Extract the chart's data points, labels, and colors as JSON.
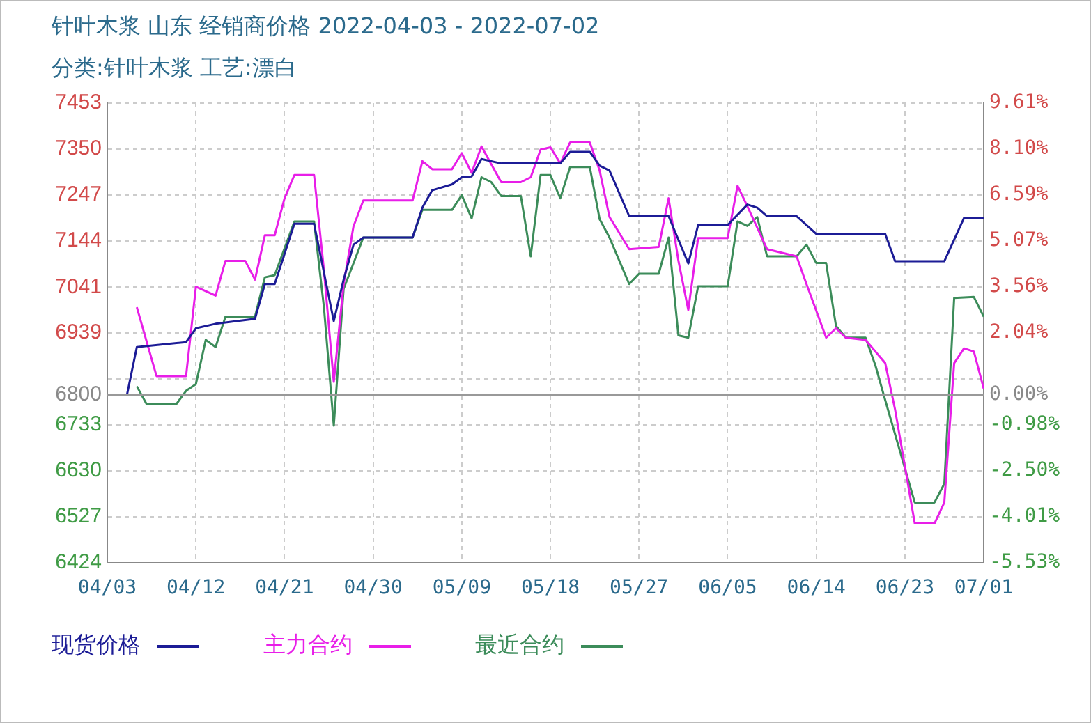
{
  "chart_data": {
    "type": "line",
    "title": "针叶木浆 山东 经销商价格 2022-04-03 - 2022-07-02",
    "subtitle": "分类:针叶木浆 工艺:漂白",
    "xlim": [
      "2022-04-03",
      "2022-07-01"
    ],
    "xticks": [
      {
        "value": "2022-04-03",
        "label": "04/03"
      },
      {
        "value": "2022-04-12",
        "label": "04/12"
      },
      {
        "value": "2022-04-21",
        "label": "04/21"
      },
      {
        "value": "2022-04-30",
        "label": "04/30"
      },
      {
        "value": "2022-05-09",
        "label": "05/09"
      },
      {
        "value": "2022-05-18",
        "label": "05/18"
      },
      {
        "value": "2022-05-27",
        "label": "05/27"
      },
      {
        "value": "2022-06-05",
        "label": "06/05"
      },
      {
        "value": "2022-06-14",
        "label": "06/14"
      },
      {
        "value": "2022-06-23",
        "label": "06/23"
      },
      {
        "value": "2022-07-01",
        "label": "07/01"
      }
    ],
    "ylim": [
      6424,
      7453
    ],
    "yticks": [
      6424,
      6527,
      6630,
      6733,
      6800,
      {
        "value": 6836,
        "label": null
      },
      6939,
      7041,
      7144,
      7247,
      7350,
      7453
    ],
    "y2lim": [
      -5.53,
      9.61
    ],
    "y2ticks": [
      {
        "value": -5.53,
        "label": "-5.53%"
      },
      {
        "value": -4.01,
        "label": "-4.01%"
      },
      {
        "value": -2.5,
        "label": "-2.50%"
      },
      {
        "value": -0.98,
        "label": "-0.98%"
      },
      {
        "value": 0,
        "label": "0.00%"
      },
      {
        "value": 2.04,
        "label": "2.04%"
      },
      {
        "value": 3.56,
        "label": "3.56%"
      },
      {
        "value": 5.07,
        "label": "5.07%"
      },
      {
        "value": 6.59,
        "label": "6.59%"
      },
      {
        "value": 8.1,
        "label": "8.10%"
      },
      {
        "value": 9.61,
        "label": "9.61%"
      }
    ],
    "ref_lines": [
      {
        "axis": "y",
        "value": 6800,
        "color": "#999999"
      }
    ],
    "grid": true,
    "legend": "bottom",
    "marker": "none",
    "line_style": "solid",
    "series": [
      {
        "name": "现货价格",
        "color": "#1c1c96",
        "x": [
          "2022-04-03",
          "2022-04-05",
          "2022-04-06",
          "2022-04-11",
          "2022-04-12",
          "2022-04-14",
          "2022-04-18",
          "2022-04-19",
          "2022-04-20",
          "2022-04-22",
          "2022-04-24",
          "2022-04-26",
          "2022-04-27",
          "2022-04-28",
          "2022-04-29",
          "2022-05-04",
          "2022-05-05",
          "2022-05-06",
          "2022-05-08",
          "2022-05-09",
          "2022-05-10",
          "2022-05-11",
          "2022-05-13",
          "2022-05-19",
          "2022-05-20",
          "2022-05-22",
          "2022-05-23",
          "2022-05-24",
          "2022-05-26",
          "2022-05-30",
          "2022-06-01",
          "2022-06-02",
          "2022-06-05",
          "2022-06-07",
          "2022-06-08",
          "2022-06-09",
          "2022-06-12",
          "2022-06-14",
          "2022-06-21",
          "2022-06-22",
          "2022-06-27",
          "2022-06-29",
          "2022-07-01"
        ],
        "values": [
          6800,
          6800,
          6907,
          6918,
          6949,
          6959,
          6970,
          7048,
          7048,
          7183,
          7183,
          6965,
          7058,
          7136,
          7152,
          7152,
          7219,
          7258,
          7271,
          7287,
          7289,
          7328,
          7318,
          7318,
          7344,
          7344,
          7313,
          7302,
          7200,
          7200,
          7094,
          7180,
          7180,
          7226,
          7219,
          7200,
          7200,
          7160,
          7160,
          7099,
          7099,
          7196,
          7196
        ]
      },
      {
        "name": "主力合约",
        "color": "#e81ee8",
        "x": [
          "2022-04-06",
          "2022-04-08",
          "2022-04-11",
          "2022-04-12",
          "2022-04-14",
          "2022-04-15",
          "2022-04-17",
          "2022-04-18",
          "2022-04-19",
          "2022-04-20",
          "2022-04-21",
          "2022-04-22",
          "2022-04-24",
          "2022-04-25",
          "2022-04-26",
          "2022-04-27",
          "2022-04-28",
          "2022-04-29",
          "2022-05-04",
          "2022-05-05",
          "2022-05-06",
          "2022-05-08",
          "2022-05-09",
          "2022-05-10",
          "2022-05-11",
          "2022-05-13",
          "2022-05-15",
          "2022-05-16",
          "2022-05-17",
          "2022-05-18",
          "2022-05-19",
          "2022-05-20",
          "2022-05-22",
          "2022-05-23",
          "2022-05-24",
          "2022-05-26",
          "2022-05-29",
          "2022-05-30",
          "2022-05-31",
          "2022-06-01",
          "2022-06-02",
          "2022-06-05",
          "2022-06-06",
          "2022-06-07",
          "2022-06-09",
          "2022-06-12",
          "2022-06-13",
          "2022-06-15",
          "2022-06-16",
          "2022-06-17",
          "2022-06-19",
          "2022-06-21",
          "2022-06-22",
          "2022-06-24",
          "2022-06-26",
          "2022-06-27",
          "2022-06-28",
          "2022-06-29",
          "2022-06-30",
          "2022-07-01"
        ],
        "values": [
          6996,
          6842,
          6842,
          7042,
          7022,
          7100,
          7100,
          7058,
          7157,
          7157,
          7240,
          7292,
          7292,
          7079,
          6829,
          7048,
          7177,
          7235,
          7235,
          7323,
          7305,
          7305,
          7341,
          7297,
          7356,
          7276,
          7276,
          7287,
          7349,
          7354,
          7318,
          7365,
          7365,
          7302,
          7198,
          7126,
          7131,
          7240,
          7100,
          6990,
          7151,
          7151,
          7268,
          7222,
          7126,
          7110,
          7048,
          6928,
          6949,
          6928,
          6923,
          6871,
          6767,
          6512,
          6512,
          6559,
          6871,
          6904,
          6897,
          6814
        ]
      },
      {
        "name": "最近合约",
        "color": "#3c8c5a",
        "x": [
          "2022-04-06",
          "2022-04-07",
          "2022-04-10",
          "2022-04-11",
          "2022-04-12",
          "2022-04-13",
          "2022-04-14",
          "2022-04-15",
          "2022-04-18",
          "2022-04-19",
          "2022-04-20",
          "2022-04-22",
          "2022-04-24",
          "2022-04-25",
          "2022-04-26",
          "2022-04-27",
          "2022-04-29",
          "2022-05-04",
          "2022-05-05",
          "2022-05-08",
          "2022-05-09",
          "2022-05-10",
          "2022-05-11",
          "2022-05-12",
          "2022-05-13",
          "2022-05-15",
          "2022-05-16",
          "2022-05-17",
          "2022-05-18",
          "2022-05-19",
          "2022-05-20",
          "2022-05-22",
          "2022-05-23",
          "2022-05-24",
          "2022-05-26",
          "2022-05-27",
          "2022-05-29",
          "2022-05-30",
          "2022-05-31",
          "2022-06-01",
          "2022-06-02",
          "2022-06-05",
          "2022-06-06",
          "2022-06-07",
          "2022-06-08",
          "2022-06-09",
          "2022-06-12",
          "2022-06-13",
          "2022-06-14",
          "2022-06-15",
          "2022-06-16",
          "2022-06-17",
          "2022-06-19",
          "2022-06-20",
          "2022-06-21",
          "2022-06-24",
          "2022-06-26",
          "2022-06-27",
          "2022-06-28",
          "2022-06-30",
          "2022-07-01"
        ],
        "values": [
          6819,
          6779,
          6779,
          6809,
          6824,
          6923,
          6907,
          6975,
          6975,
          7063,
          7068,
          7188,
          7188,
          6996,
          6731,
          7037,
          7152,
          7152,
          7214,
          7214,
          7247,
          7195,
          7287,
          7276,
          7245,
          7245,
          7110,
          7292,
          7292,
          7240,
          7310,
          7310,
          7193,
          7152,
          7048,
          7071,
          7071,
          7152,
          6933,
          6928,
          7043,
          7043,
          7188,
          7178,
          7198,
          7110,
          7110,
          7136,
          7095,
          7095,
          6954,
          6928,
          6928,
          6866,
          6788,
          6559,
          6559,
          6601,
          7017,
          7019,
          6975
        ]
      }
    ]
  }
}
